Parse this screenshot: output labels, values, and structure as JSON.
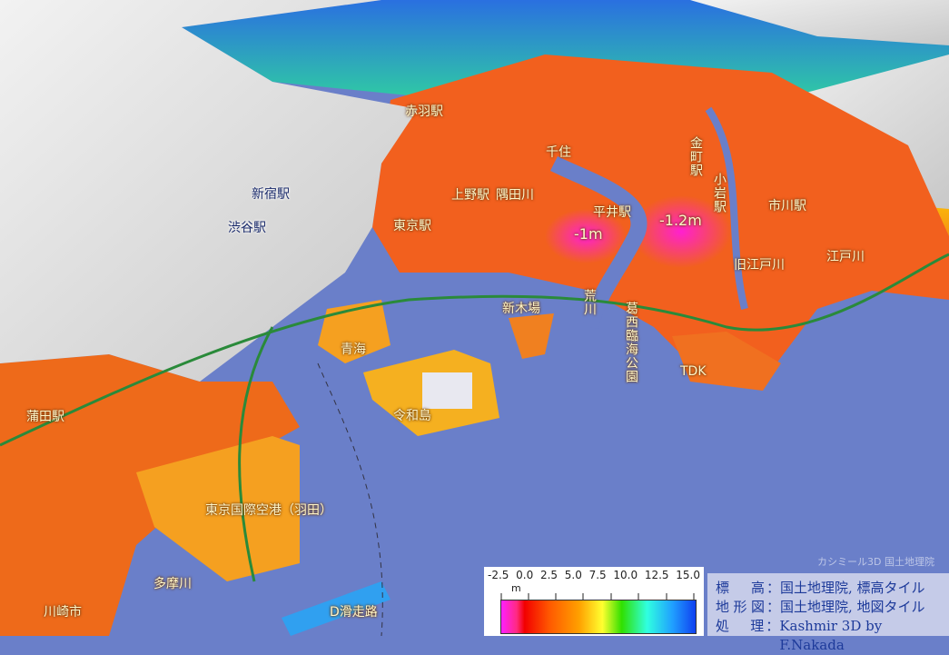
{
  "map": {
    "labels": {
      "akabane": "赤羽駅",
      "senju": "千住",
      "kanamachi": "金町駅",
      "koiwa": "小岩駅",
      "ichikawa": "市川駅",
      "ueno": "上野駅",
      "sumidagawa": "隅田川",
      "tokyo": "東京駅",
      "shinjuku": "新宿駅",
      "shibuya": "渋谷駅",
      "hirai": "平井駅",
      "minus1": "-1m",
      "minus12": "-1.2m",
      "kyuedogawa": "旧江戸川",
      "edogawa": "江戸川",
      "shinkiba": "新木場",
      "arakawa": "荒川",
      "kasai": "葛西臨海公園",
      "tdk": "TDK",
      "aomi": "青海",
      "reiwajima": "令和島",
      "kamata": "蒲田駅",
      "haneda": "東京国際空港（羽田）",
      "tamagawa": "多摩川",
      "kawasaki": "川崎市",
      "drunway": "D滑走路"
    },
    "colors": {
      "sea": "#6a7fc9",
      "lowland": "#f05a1a",
      "below_sea": "#ff20c0",
      "upland": "#e8e8e8"
    }
  },
  "legend": {
    "ticks": [
      "-2.5",
      "0.0",
      "2.5",
      "5.0",
      "7.5",
      "10.0",
      "12.5",
      "15.0"
    ],
    "unit": "m"
  },
  "credits": {
    "rows": [
      {
        "key": [
          "標",
          "高"
        ],
        "value": "国土地理院, 標高タイル"
      },
      {
        "key": [
          "地",
          "形",
          "図"
        ],
        "value": "国土地理院, 地図タイル"
      },
      {
        "key": [
          "処",
          "理"
        ],
        "value": "Kashmir 3D by F.Nakada"
      }
    ],
    "watermark": "カシミール3D 国土地理院"
  }
}
